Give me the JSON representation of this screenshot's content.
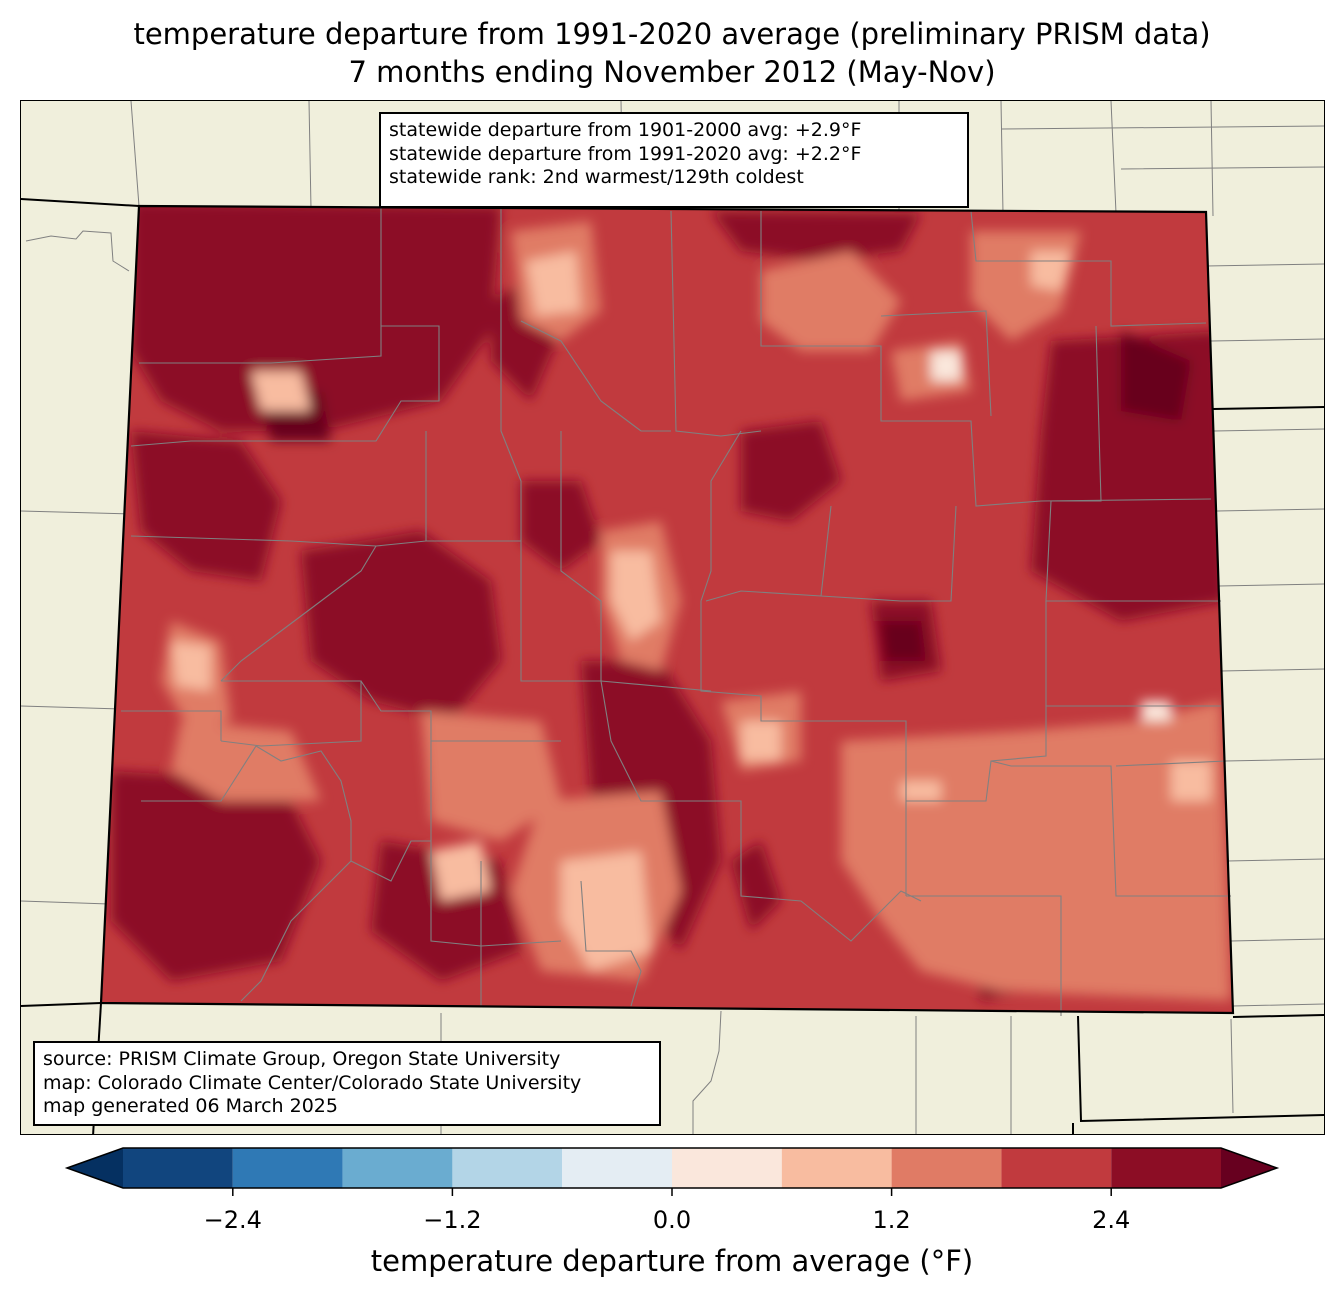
{
  "title": {
    "line1": "temperature departure from 1991-2020 average (preliminary PRISM data)",
    "line2": "7 months ending November 2012 (May-Nov)"
  },
  "stats": {
    "line1": "statewide departure from 1901-2000 avg: +2.9°F",
    "line2": "statewide departure from 1991-2020 avg: +2.2°F",
    "line3": "statewide rank: 2nd warmest/129th coldest"
  },
  "source": {
    "line1": "source: PRISM Climate Group, Oregon State University",
    "line2": "map: Colorado Climate Center/Colorado State University",
    "line3": "map generated 06 March 2025"
  },
  "colorbar": {
    "label": "temperature departure from average (°F)",
    "ticks": [
      "−2.4",
      "−1.2",
      "0.0",
      "1.2",
      "2.4"
    ],
    "tick_values": [
      -2.4,
      -1.2,
      0.0,
      1.2,
      2.4
    ],
    "levels": [
      -3.0,
      -2.4,
      -1.8,
      -1.2,
      -0.6,
      0.0,
      0.6,
      1.2,
      1.8,
      2.4,
      3.0
    ],
    "colors": [
      "#11457e",
      "#2f79b5",
      "#6aacd0",
      "#b3d5e7",
      "#e4edf3",
      "#fae7dc",
      "#f8bca0",
      "#e07b65",
      "#c13a3e",
      "#8c0d25"
    ],
    "under_color": "#053061",
    "over_color": "#67001f"
  },
  "map": {
    "background_color": "#f0efdc",
    "state_boundary_color": "#000000",
    "county_boundary_color": "#808080"
  }
}
